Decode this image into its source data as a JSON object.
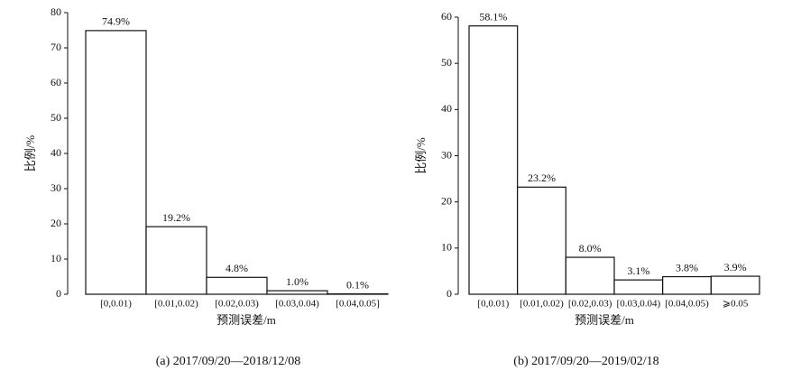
{
  "chart_data": [
    {
      "type": "bar",
      "caption": "(a) 2017/09/20—2018/12/08",
      "xlabel": "预测误差/m",
      "ylabel": "比例/%",
      "categories": [
        "[0,0.01)",
        "[0.01,0.02)",
        "[0.02,0.03)",
        "[0.03,0.04)",
        "[0.04,0.05]"
      ],
      "values": [
        74.9,
        19.2,
        4.8,
        1.0,
        0.1
      ],
      "value_labels": [
        "74.9%",
        "19.2%",
        "4.8%",
        "1.0%",
        "0.1%"
      ],
      "color": "#ffffff",
      "ylim": [
        0,
        80
      ],
      "yticks": [
        0,
        10,
        20,
        30,
        40,
        50,
        60,
        70,
        80
      ]
    },
    {
      "type": "bar",
      "caption": "(b) 2017/09/20—2019/02/18",
      "xlabel": "预测误差/m",
      "ylabel": "比例/%",
      "categories": [
        "[0,0.01)",
        "[0.01,0.02)",
        "[0.02,0.03)",
        "[0.03,0.04)",
        "[0.04,0.05)",
        "⩾0.05"
      ],
      "values": [
        58.1,
        23.2,
        8.0,
        3.1,
        3.8,
        3.9
      ],
      "value_labels": [
        "58.1%",
        "23.2%",
        "8.0%",
        "3.1%",
        "3.8%",
        "3.9%"
      ],
      "color": "#ffffff",
      "ylim": [
        0,
        60
      ],
      "yticks": [
        0,
        10,
        20,
        30,
        40,
        50,
        60
      ]
    }
  ]
}
